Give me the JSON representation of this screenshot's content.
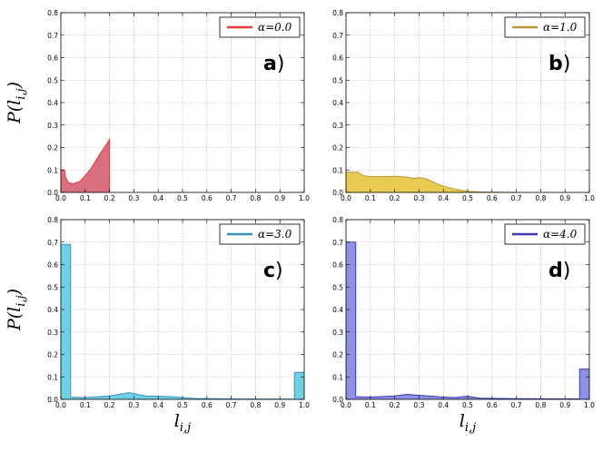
{
  "chart_data": [
    {
      "type": "area",
      "panel_label": "a",
      "legend": "α=0.0",
      "line_color": "#e8383a",
      "fill_color": "#d9707e",
      "ylabel": "P(li,j)",
      "xlabel": "",
      "xlim": [
        0.0,
        1.0
      ],
      "ylim": [
        0.0,
        0.8
      ],
      "xticks": [
        "0.0",
        "0.1",
        "0.2",
        "0.3",
        "0.4",
        "0.5",
        "0.6",
        "0.7",
        "0.8",
        "0.9",
        "1.0"
      ],
      "yticks": [
        "0.0",
        "0.1",
        "0.2",
        "0.3",
        "0.4",
        "0.5",
        "0.6",
        "0.7",
        "0.8"
      ],
      "grid": true,
      "legend_position": "top-right",
      "x": [
        0.0,
        0.015,
        0.02,
        0.03,
        0.05,
        0.08,
        0.12,
        0.16,
        0.2,
        0.2
      ],
      "y": [
        0.1,
        0.1,
        0.065,
        0.045,
        0.038,
        0.05,
        0.1,
        0.17,
        0.235,
        0.0
      ]
    },
    {
      "type": "area",
      "panel_label": "b",
      "legend": "α=1.0",
      "line_color": "#b5983a",
      "fill_color": "#e8cb50",
      "ylabel": "",
      "xlabel": "",
      "xlim": [
        0.0,
        1.0
      ],
      "ylim": [
        0.0,
        0.8
      ],
      "xticks": [
        "0.0",
        "0.1",
        "0.2",
        "0.3",
        "0.4",
        "0.5",
        "0.6",
        "0.7",
        "0.8",
        "0.9",
        "1.0"
      ],
      "yticks": [
        "0.0",
        "0.1",
        "0.2",
        "0.3",
        "0.4",
        "0.5",
        "0.6",
        "0.7",
        "0.8"
      ],
      "grid": true,
      "legend_position": "top-right",
      "x": [
        0.0,
        0.05,
        0.07,
        0.1,
        0.15,
        0.2,
        0.25,
        0.28,
        0.3,
        0.33,
        0.35,
        0.38,
        0.42,
        0.46,
        0.5,
        0.55,
        0.6,
        0.7
      ],
      "y": [
        0.09,
        0.09,
        0.075,
        0.07,
        0.07,
        0.072,
        0.068,
        0.062,
        0.066,
        0.06,
        0.05,
        0.035,
        0.022,
        0.012,
        0.005,
        0.002,
        0.001,
        0.0
      ]
    },
    {
      "type": "area",
      "panel_label": "c",
      "legend": "α=3.0",
      "line_color": "#3a8fc0",
      "fill_color": "#72d0e6",
      "ylabel": "P(li,j)",
      "xlabel": "li,j",
      "xlim": [
        0.0,
        1.0
      ],
      "ylim": [
        0.0,
        0.8
      ],
      "xticks": [
        "0.0",
        "0.1",
        "0.2",
        "0.3",
        "0.4",
        "0.5",
        "0.6",
        "0.7",
        "0.8",
        "0.9",
        "1.0"
      ],
      "yticks": [
        "0.0",
        "0.1",
        "0.2",
        "0.3",
        "0.4",
        "0.5",
        "0.6",
        "0.7",
        "0.8"
      ],
      "grid": true,
      "legend_position": "top-right",
      "x": [
        0.0,
        0.04,
        0.04,
        0.1,
        0.2,
        0.28,
        0.35,
        0.45,
        0.55,
        0.7,
        0.9,
        0.96,
        0.96,
        1.0
      ],
      "y": [
        0.69,
        0.69,
        0.01,
        0.008,
        0.015,
        0.03,
        0.015,
        0.012,
        0.004,
        0.002,
        0.001,
        0.001,
        0.12,
        0.12
      ]
    },
    {
      "type": "area",
      "panel_label": "d",
      "legend": "α=4.0",
      "line_color": "#3a3ab0",
      "fill_color": "#8f8fe6",
      "ylabel": "",
      "xlabel": "li,j",
      "xlim": [
        0.0,
        1.0
      ],
      "ylim": [
        0.0,
        0.8
      ],
      "xticks": [
        "0.0",
        "0.1",
        "0.2",
        "0.3",
        "0.4",
        "0.5",
        "0.6",
        "0.7",
        "0.8",
        "0.9",
        "1.0"
      ],
      "yticks": [
        "0.0",
        "0.1",
        "0.2",
        "0.3",
        "0.4",
        "0.5",
        "0.6",
        "0.7",
        "0.8"
      ],
      "grid": true,
      "legend_position": "top-right",
      "x": [
        0.0,
        0.04,
        0.04,
        0.1,
        0.2,
        0.25,
        0.3,
        0.4,
        0.45,
        0.5,
        0.55,
        0.7,
        0.9,
        0.96,
        0.96,
        1.0
      ],
      "y": [
        0.7,
        0.7,
        0.012,
        0.01,
        0.015,
        0.022,
        0.018,
        0.01,
        0.008,
        0.014,
        0.005,
        0.003,
        0.002,
        0.002,
        0.135,
        0.135
      ]
    }
  ]
}
